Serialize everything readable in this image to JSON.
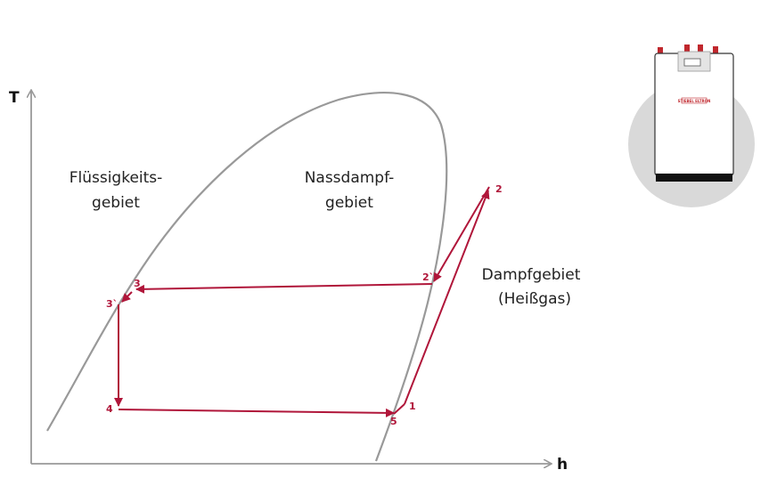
{
  "axes": {
    "y_label": "T",
    "x_label": "h"
  },
  "regions": [
    {
      "lines": [
        "Flüssigkeits-",
        "gebiet"
      ]
    },
    {
      "lines": [
        "Nassdampf-",
        "gebiet"
      ]
    },
    {
      "lines": [
        "Dampfgebiet",
        "(Heißgas)"
      ]
    }
  ],
  "points": [
    {
      "label": "1"
    },
    {
      "label": "2"
    },
    {
      "label": "2`"
    },
    {
      "label": "3"
    },
    {
      "label": "3`"
    },
    {
      "label": "4"
    },
    {
      "label": "5"
    }
  ],
  "device": {
    "brand": "STIEBEL ELTRON"
  }
}
